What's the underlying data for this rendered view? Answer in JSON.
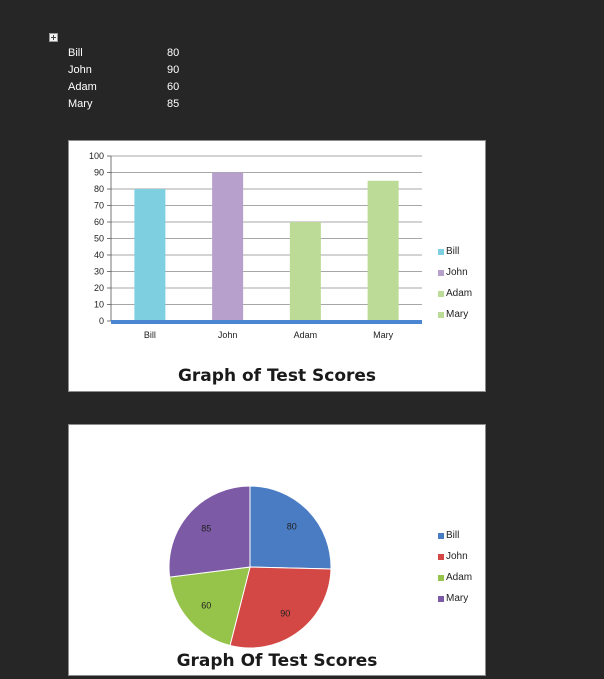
{
  "table": {
    "rows": [
      {
        "name": "Bill",
        "score": "80"
      },
      {
        "name": "John",
        "score": "90"
      },
      {
        "name": "Adam",
        "score": "60"
      },
      {
        "name": "Mary",
        "score": "85"
      }
    ]
  },
  "bar_title": "Graph of Test Scores",
  "pie_title": "Graph Of Test Scores",
  "bar_legend": [
    {
      "label": "Bill",
      "color": "#7ecfe0"
    },
    {
      "label": "John",
      "color": "#b8a0cc"
    },
    {
      "label": "Adam",
      "color": "#bcdb96"
    },
    {
      "label": "Mary",
      "color": "#bcdb96"
    }
  ],
  "pie_legend": [
    {
      "label": "Bill",
      "color": "#4a7cc4"
    },
    {
      "label": "John",
      "color": "#d34844"
    },
    {
      "label": "Adam",
      "color": "#96c34a"
    },
    {
      "label": "Mary",
      "color": "#7c5aa6"
    }
  ],
  "chart_data": [
    {
      "type": "bar",
      "title": "Graph of Test Scores",
      "categories": [
        "Bill",
        "John",
        "Adam",
        "Mary"
      ],
      "values": [
        80,
        90,
        60,
        85
      ],
      "colors": [
        "#7ecfe0",
        "#b8a0cc",
        "#bcdb96",
        "#bcdb96"
      ],
      "ylim": [
        0,
        100
      ],
      "yticks": [
        0,
        10,
        20,
        30,
        40,
        50,
        60,
        70,
        80,
        90,
        100
      ],
      "grid": true,
      "legend": "right"
    },
    {
      "type": "pie",
      "title": "Graph Of Test Scores",
      "categories": [
        "Bill",
        "John",
        "Adam",
        "Mary"
      ],
      "values": [
        80,
        90,
        60,
        85
      ],
      "colors": [
        "#4a7cc4",
        "#d34844",
        "#96c34a",
        "#7c5aa6"
      ],
      "legend": "right"
    }
  ]
}
